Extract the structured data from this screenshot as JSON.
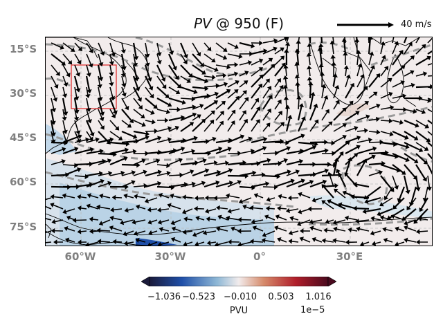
{
  "title": {
    "italic": "PV",
    "rest": " @ 950 (F)"
  },
  "quiver_key": {
    "label": "40 m/s",
    "color": "#000000"
  },
  "lat_labels": [
    "15°S",
    "30°S",
    "45°S",
    "60°S",
    "75°S"
  ],
  "lon_labels": [
    "60°W",
    "30°W",
    "0°",
    "30°E"
  ],
  "colorbar": {
    "ticks": [
      "−1.036",
      "−0.523",
      "−0.010",
      "0.503",
      "1.016"
    ],
    "label": "PVU",
    "exponent": "1e−5",
    "colors": [
      "#1a1a3a",
      "#1f4fa8",
      "#8fb8d6",
      "#f2ecec",
      "#d68a6a",
      "#b01e2a",
      "#4a0a1e"
    ]
  },
  "map": {
    "background": "#f2ecec",
    "region_box_color": "#e03030",
    "contour_color": "#9a9a9a",
    "vector_color": "#000000",
    "negative_pv_color": "#a9c8e0"
  }
}
